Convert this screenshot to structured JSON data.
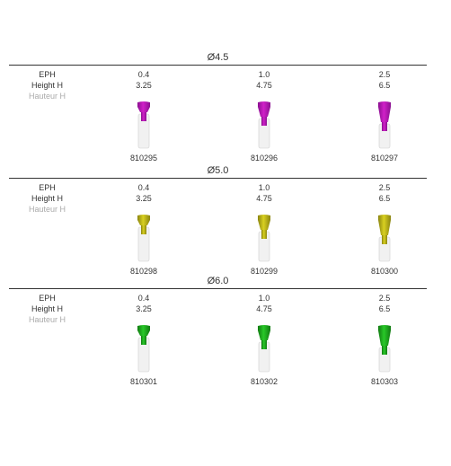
{
  "row_labels": {
    "eph": "EPH",
    "height": "Height H",
    "height_fr": "Hauteur H"
  },
  "sections": [
    {
      "title": "Ø4.5",
      "color": "#d020c8",
      "dark": "#8a1090",
      "items": [
        {
          "eph": "0.4",
          "h": "3.25",
          "ref": "810295"
        },
        {
          "eph": "1.0",
          "h": "4.75",
          "ref": "810296"
        },
        {
          "eph": "2.5",
          "h": "6.5",
          "ref": "810297"
        }
      ]
    },
    {
      "title": "Ø5.0",
      "color": "#d8d020",
      "dark": "#8a8410",
      "items": [
        {
          "eph": "0.4",
          "h": "3.25",
          "ref": "810298"
        },
        {
          "eph": "1.0",
          "h": "4.75",
          "ref": "810299"
        },
        {
          "eph": "2.5",
          "h": "6.5",
          "ref": "810300"
        }
      ]
    },
    {
      "title": "Ø6.0",
      "color": "#28c828",
      "dark": "#107a10",
      "items": [
        {
          "eph": "0.4",
          "h": "3.25",
          "ref": "810301"
        },
        {
          "eph": "1.0",
          "h": "4.75",
          "ref": "810302"
        },
        {
          "eph": "2.5",
          "h": "6.5",
          "ref": "810303"
        }
      ]
    }
  ]
}
